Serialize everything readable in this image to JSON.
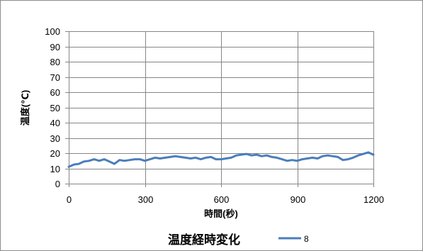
{
  "chart_data": {
    "type": "line",
    "title": "温度経時変化",
    "xlabel": "時間(秒)",
    "ylabel": "温度(℃)",
    "xlim": [
      0,
      1200
    ],
    "ylim": [
      0,
      100
    ],
    "xticks": [
      0,
      300,
      600,
      900,
      1200
    ],
    "yticks": [
      0,
      10,
      20,
      30,
      40,
      50,
      60,
      70,
      80,
      90,
      100
    ],
    "grid": true,
    "legend": "bottom",
    "x": [
      0,
      20,
      40,
      60,
      80,
      100,
      120,
      140,
      160,
      180,
      200,
      220,
      240,
      260,
      280,
      300,
      320,
      340,
      360,
      380,
      400,
      420,
      440,
      460,
      480,
      500,
      520,
      540,
      560,
      580,
      600,
      620,
      640,
      660,
      680,
      700,
      720,
      740,
      760,
      780,
      800,
      820,
      840,
      860,
      880,
      900,
      920,
      940,
      960,
      980,
      1000,
      1020,
      1040,
      1060,
      1080,
      1100,
      1120,
      1140,
      1160,
      1180,
      1200
    ],
    "series": [
      {
        "name": "8",
        "color": "#4A7EBB",
        "values": [
          11,
          12.5,
          13,
          14.5,
          15,
          16,
          15,
          16,
          14.5,
          13,
          15.5,
          15,
          15.5,
          16,
          16,
          15,
          16,
          17,
          16.5,
          17,
          17.5,
          18,
          17.5,
          17,
          16.5,
          17,
          16,
          17,
          17.5,
          16,
          16,
          16.5,
          17,
          18.5,
          19,
          19.5,
          18.5,
          19,
          18,
          18.5,
          17.5,
          17,
          16,
          15,
          15.5,
          15,
          16,
          16.5,
          17,
          16.5,
          18,
          18.5,
          18,
          17.5,
          15.5,
          16,
          17,
          18.5,
          19.5,
          20.5,
          19
        ]
      }
    ]
  }
}
